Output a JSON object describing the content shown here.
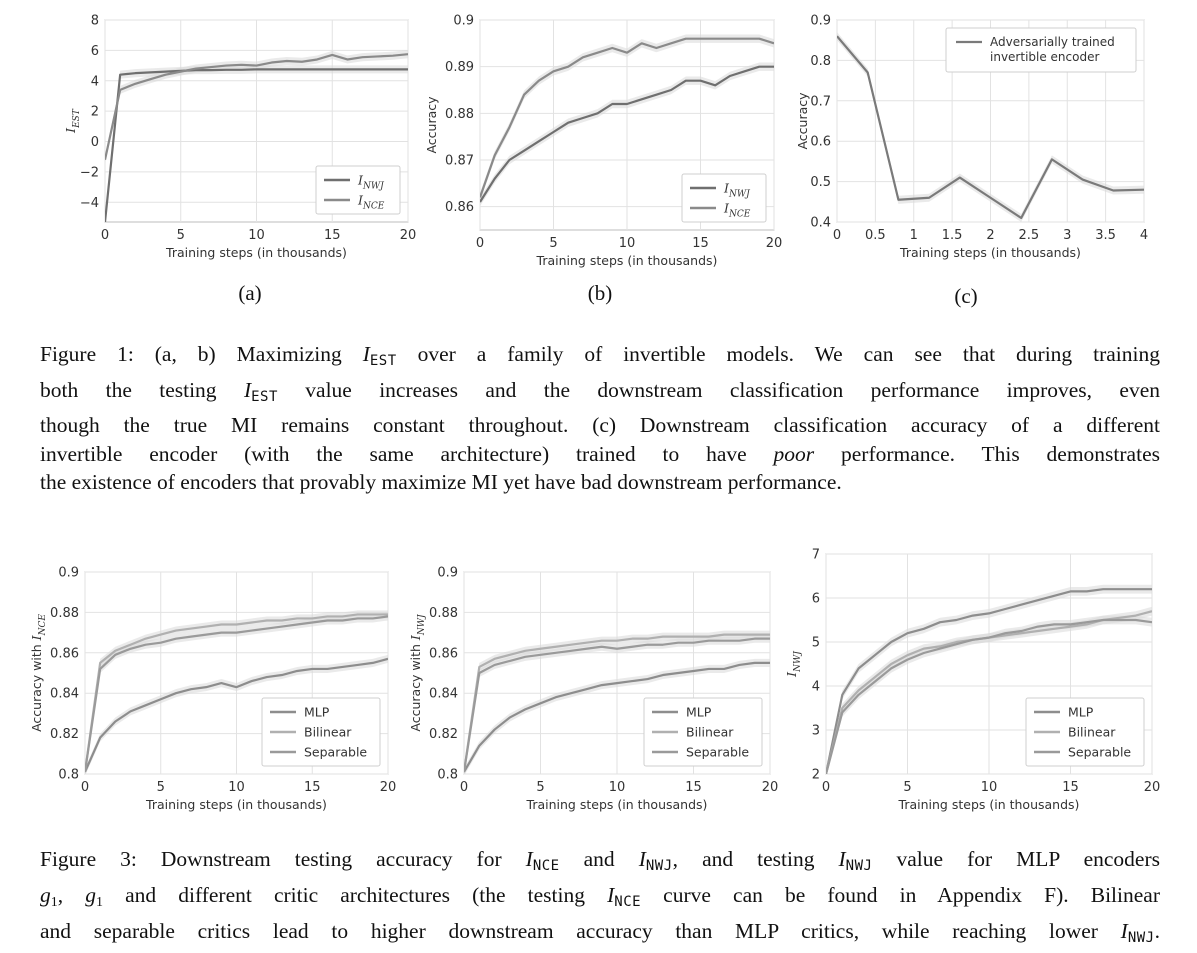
{
  "figure1": {
    "subcaptions": [
      "(a)",
      "(b)",
      "(c)"
    ],
    "caption_lines": [
      "Figure 1: (a, b) Maximizing I_EST over a family of invertible models. We can see that during training",
      "both the testing I_EST value increases and the downstream classification performance improves, even",
      "though the true MI remains constant throughout. (c) Downstream classification accuracy of a different",
      "invertible encoder (with the same architecture) trained to have poor performance. This demonstrates",
      "the existence of encoders that provably maximize MI yet have bad downstream performance."
    ]
  },
  "figure3": {
    "caption_lines": [
      "Figure 3: Downstream testing accuracy for I_NCE and I_NWJ, and testing I_NWJ value for MLP encoders",
      "g1, g1 and different critic architectures (the testing I_NCE curve can be found in Appendix F). Bilinear",
      "and separable critics lead to higher downstream accuracy than MLP critics, while reaching lower I_NWJ."
    ]
  },
  "chart_data": [
    {
      "id": "fig1a",
      "type": "line",
      "xlabel": "Training steps (in thousands)",
      "ylabel": "I_EST",
      "xlim": [
        0,
        20
      ],
      "ylim": [
        -5.3,
        8
      ],
      "xticks": [
        0,
        5,
        10,
        15,
        20
      ],
      "yticks": [
        -4,
        -2,
        0,
        2,
        4,
        6,
        8
      ],
      "grid": true,
      "legend": "bottom-right",
      "series": [
        {
          "name": "I_NWJ",
          "color": "#6f6f6f",
          "x": [
            0,
            1,
            2,
            3,
            4,
            5,
            6,
            7,
            8,
            9,
            10,
            11,
            12,
            13,
            14,
            15,
            16,
            17,
            18,
            19,
            20
          ],
          "y": [
            -5.3,
            4.4,
            4.5,
            4.55,
            4.6,
            4.65,
            4.7,
            4.7,
            4.72,
            4.72,
            4.75,
            4.75,
            4.75,
            4.75,
            4.75,
            4.75,
            4.75,
            4.75,
            4.75,
            4.75,
            4.75
          ]
        },
        {
          "name": "I_NCE",
          "color": "#8a8a8a",
          "x": [
            0,
            1,
            2,
            3,
            4,
            5,
            6,
            7,
            8,
            9,
            10,
            11,
            12,
            13,
            14,
            15,
            16,
            17,
            18,
            19,
            20
          ],
          "y": [
            -1.2,
            3.4,
            3.8,
            4.1,
            4.4,
            4.6,
            4.8,
            4.9,
            5.0,
            5.05,
            5.0,
            5.2,
            5.3,
            5.25,
            5.4,
            5.7,
            5.4,
            5.55,
            5.6,
            5.65,
            5.75
          ]
        }
      ]
    },
    {
      "id": "fig1b",
      "type": "line",
      "xlabel": "Training steps (in thousands)",
      "ylabel": "Accuracy",
      "xlim": [
        0,
        20
      ],
      "ylim": [
        0.855,
        0.9
      ],
      "xticks": [
        0,
        5,
        10,
        15,
        20
      ],
      "yticks": [
        0.86,
        0.87,
        0.88,
        0.89,
        0.9
      ],
      "grid": true,
      "legend": "bottom-right",
      "series": [
        {
          "name": "I_NWJ",
          "color": "#6f6f6f",
          "x": [
            0,
            1,
            2,
            3,
            4,
            5,
            6,
            7,
            8,
            9,
            10,
            11,
            12,
            13,
            14,
            15,
            16,
            17,
            18,
            19,
            20
          ],
          "y": [
            0.861,
            0.866,
            0.87,
            0.872,
            0.874,
            0.876,
            0.878,
            0.879,
            0.88,
            0.882,
            0.882,
            0.883,
            0.884,
            0.885,
            0.887,
            0.887,
            0.886,
            0.888,
            0.889,
            0.89,
            0.89
          ]
        },
        {
          "name": "I_NCE",
          "color": "#8a8a8a",
          "x": [
            0,
            1,
            2,
            3,
            4,
            5,
            6,
            7,
            8,
            9,
            10,
            11,
            12,
            13,
            14,
            15,
            16,
            17,
            18,
            19,
            20
          ],
          "y": [
            0.862,
            0.871,
            0.877,
            0.884,
            0.887,
            0.889,
            0.89,
            0.892,
            0.893,
            0.894,
            0.893,
            0.895,
            0.894,
            0.895,
            0.896,
            0.896,
            0.896,
            0.896,
            0.896,
            0.896,
            0.895
          ]
        }
      ]
    },
    {
      "id": "fig1c",
      "type": "line",
      "xlabel": "Training steps (in thousands)",
      "ylabel": "Accuracy",
      "xlim": [
        0,
        4
      ],
      "ylim": [
        0.4,
        0.9
      ],
      "xticks": [
        0,
        0.5,
        1,
        1.5,
        2,
        2.5,
        3,
        3.5,
        4
      ],
      "yticks": [
        0.4,
        0.5,
        0.6,
        0.7,
        0.8,
        0.9
      ],
      "grid": true,
      "legend": "top-right",
      "series": [
        {
          "name": "Adversarially trained invertible encoder",
          "color": "#7a7a7a",
          "x": [
            0,
            0.4,
            0.8,
            1.2,
            1.6,
            2.0,
            2.4,
            2.8,
            3.2,
            3.6,
            4.0
          ],
          "y": [
            0.86,
            0.77,
            0.455,
            0.46,
            0.51,
            0.46,
            0.41,
            0.555,
            0.505,
            0.478,
            0.48
          ]
        }
      ]
    },
    {
      "id": "fig3a",
      "type": "line",
      "xlabel": "Training steps (in thousands)",
      "ylabel": "Accuracy with I_NCE",
      "xlim": [
        0,
        20
      ],
      "ylim": [
        0.8,
        0.9
      ],
      "xticks": [
        0,
        5,
        10,
        15,
        20
      ],
      "yticks": [
        0.8,
        0.82,
        0.84,
        0.86,
        0.88,
        0.9
      ],
      "grid": true,
      "legend": "bottom-right",
      "series": [
        {
          "name": "MLP",
          "color": "#8d8d8d",
          "x": [
            0,
            1,
            2,
            3,
            4,
            5,
            6,
            7,
            8,
            9,
            10,
            11,
            12,
            13,
            14,
            15,
            16,
            17,
            18,
            19,
            20
          ],
          "y": [
            0.801,
            0.818,
            0.826,
            0.831,
            0.834,
            0.837,
            0.84,
            0.842,
            0.843,
            0.845,
            0.843,
            0.846,
            0.848,
            0.849,
            0.851,
            0.852,
            0.852,
            0.853,
            0.854,
            0.855,
            0.857
          ]
        },
        {
          "name": "Bilinear",
          "color": "#b0b0b0",
          "x": [
            0,
            1,
            2,
            3,
            4,
            5,
            6,
            7,
            8,
            9,
            10,
            11,
            12,
            13,
            14,
            15,
            16,
            17,
            18,
            19,
            20
          ],
          "y": [
            0.801,
            0.855,
            0.861,
            0.864,
            0.867,
            0.869,
            0.871,
            0.872,
            0.873,
            0.874,
            0.874,
            0.875,
            0.876,
            0.876,
            0.877,
            0.877,
            0.878,
            0.878,
            0.879,
            0.879,
            0.879
          ]
        },
        {
          "name": "Separable",
          "color": "#9a9a9a",
          "x": [
            0,
            1,
            2,
            3,
            4,
            5,
            6,
            7,
            8,
            9,
            10,
            11,
            12,
            13,
            14,
            15,
            16,
            17,
            18,
            19,
            20
          ],
          "y": [
            0.801,
            0.852,
            0.859,
            0.862,
            0.864,
            0.865,
            0.867,
            0.868,
            0.869,
            0.87,
            0.87,
            0.871,
            0.872,
            0.873,
            0.874,
            0.875,
            0.876,
            0.876,
            0.877,
            0.877,
            0.878
          ]
        }
      ]
    },
    {
      "id": "fig3b",
      "type": "line",
      "xlabel": "Training steps (in thousands)",
      "ylabel": "Accuracy with I_NWJ",
      "xlim": [
        0,
        20
      ],
      "ylim": [
        0.8,
        0.9
      ],
      "xticks": [
        0,
        5,
        10,
        15,
        20
      ],
      "yticks": [
        0.8,
        0.82,
        0.84,
        0.86,
        0.88,
        0.9
      ],
      "grid": true,
      "legend": "bottom-right",
      "series": [
        {
          "name": "MLP",
          "color": "#8d8d8d",
          "x": [
            0,
            1,
            2,
            3,
            4,
            5,
            6,
            7,
            8,
            9,
            10,
            11,
            12,
            13,
            14,
            15,
            16,
            17,
            18,
            19,
            20
          ],
          "y": [
            0.801,
            0.814,
            0.822,
            0.828,
            0.832,
            0.835,
            0.838,
            0.84,
            0.842,
            0.844,
            0.845,
            0.846,
            0.847,
            0.849,
            0.85,
            0.851,
            0.852,
            0.852,
            0.854,
            0.855,
            0.855
          ]
        },
        {
          "name": "Bilinear",
          "color": "#b0b0b0",
          "x": [
            0,
            1,
            2,
            3,
            4,
            5,
            6,
            7,
            8,
            9,
            10,
            11,
            12,
            13,
            14,
            15,
            16,
            17,
            18,
            19,
            20
          ],
          "y": [
            0.801,
            0.853,
            0.857,
            0.859,
            0.861,
            0.862,
            0.863,
            0.864,
            0.865,
            0.866,
            0.866,
            0.867,
            0.867,
            0.868,
            0.868,
            0.868,
            0.868,
            0.869,
            0.869,
            0.869,
            0.869
          ]
        },
        {
          "name": "Separable",
          "color": "#9a9a9a",
          "x": [
            0,
            1,
            2,
            3,
            4,
            5,
            6,
            7,
            8,
            9,
            10,
            11,
            12,
            13,
            14,
            15,
            16,
            17,
            18,
            19,
            20
          ],
          "y": [
            0.801,
            0.85,
            0.854,
            0.856,
            0.858,
            0.859,
            0.86,
            0.861,
            0.862,
            0.863,
            0.862,
            0.863,
            0.864,
            0.864,
            0.865,
            0.865,
            0.866,
            0.866,
            0.866,
            0.867,
            0.867
          ]
        }
      ]
    },
    {
      "id": "fig3c",
      "type": "line",
      "xlabel": "Training steps (in thousands)",
      "ylabel": "I_NWJ",
      "xlim": [
        0,
        20
      ],
      "ylim": [
        2,
        7
      ],
      "xticks": [
        0,
        5,
        10,
        15,
        20
      ],
      "yticks": [
        2,
        3,
        4,
        5,
        6,
        7
      ],
      "grid": true,
      "legend": "bottom-right",
      "series": [
        {
          "name": "MLP",
          "color": "#8d8d8d",
          "x": [
            0,
            1,
            2,
            3,
            4,
            5,
            6,
            7,
            8,
            9,
            10,
            11,
            12,
            13,
            14,
            15,
            16,
            17,
            18,
            19,
            20
          ],
          "y": [
            2.0,
            3.8,
            4.4,
            4.7,
            5.0,
            5.2,
            5.3,
            5.45,
            5.5,
            5.6,
            5.65,
            5.75,
            5.85,
            5.95,
            6.05,
            6.15,
            6.15,
            6.2,
            6.2,
            6.2,
            6.2
          ]
        },
        {
          "name": "Bilinear",
          "color": "#b0b0b0",
          "x": [
            0,
            1,
            2,
            3,
            4,
            5,
            6,
            7,
            8,
            9,
            10,
            11,
            12,
            13,
            14,
            15,
            16,
            17,
            18,
            19,
            20
          ],
          "y": [
            2.0,
            3.5,
            3.9,
            4.2,
            4.5,
            4.7,
            4.85,
            4.9,
            5.0,
            5.05,
            5.1,
            5.15,
            5.2,
            5.25,
            5.3,
            5.35,
            5.4,
            5.5,
            5.55,
            5.6,
            5.7
          ]
        },
        {
          "name": "Separable",
          "color": "#9a9a9a",
          "x": [
            0,
            1,
            2,
            3,
            4,
            5,
            6,
            7,
            8,
            9,
            10,
            11,
            12,
            13,
            14,
            15,
            16,
            17,
            18,
            19,
            20
          ],
          "y": [
            2.0,
            3.4,
            3.8,
            4.1,
            4.4,
            4.6,
            4.75,
            4.85,
            4.95,
            5.05,
            5.1,
            5.2,
            5.25,
            5.35,
            5.4,
            5.4,
            5.45,
            5.5,
            5.5,
            5.5,
            5.45
          ]
        }
      ]
    }
  ]
}
